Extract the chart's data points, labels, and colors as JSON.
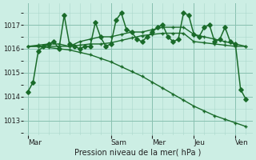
{
  "bg_color": "#cceee4",
  "grid_color": "#aad8cc",
  "line_color": "#1a6b2a",
  "title": "Pression niveau de la mer( hPa )",
  "yticks": [
    1013,
    1014,
    1015,
    1016,
    1017
  ],
  "ylim": [
    1012.4,
    1017.9
  ],
  "day_positions": [
    0,
    96,
    144,
    192,
    240
  ],
  "day_labels": [
    "Mar",
    "Sam",
    "Mer",
    "Jeu",
    "Ven"
  ],
  "xlim": [
    -5,
    260
  ],
  "lines": [
    {
      "x": [
        0,
        6,
        12,
        18,
        24,
        30,
        36,
        42,
        48,
        54,
        60,
        66,
        72,
        78,
        84,
        90,
        96,
        102,
        108,
        114,
        120,
        126,
        132,
        138,
        144,
        150,
        156,
        162,
        168,
        174,
        180,
        186,
        192,
        198,
        204,
        210,
        216,
        222,
        228,
        234,
        240,
        246,
        252
      ],
      "y": [
        1014.2,
        1014.6,
        1015.9,
        1016.1,
        1016.2,
        1016.3,
        1016.0,
        1017.4,
        1016.2,
        1016.1,
        1016.0,
        1016.1,
        1016.1,
        1017.1,
        1016.5,
        1016.1,
        1016.2,
        1017.2,
        1017.5,
        1016.8,
        1016.7,
        1016.4,
        1016.3,
        1016.5,
        1016.7,
        1016.9,
        1017.0,
        1016.5,
        1016.3,
        1016.4,
        1017.5,
        1017.4,
        1016.6,
        1016.5,
        1016.9,
        1017.0,
        1016.3,
        1016.4,
        1016.9,
        1016.3,
        1016.2,
        1014.3,
        1013.9
      ]
    },
    {
      "x": [
        0,
        12,
        24,
        36,
        48,
        60,
        72,
        84,
        96,
        108,
        120,
        132,
        144,
        156,
        168,
        180,
        192,
        204,
        216,
        228,
        240,
        252
      ],
      "y": [
        1016.1,
        1016.15,
        1016.2,
        1016.2,
        1016.1,
        1016.3,
        1016.4,
        1016.5,
        1016.5,
        1016.6,
        1016.7,
        1016.7,
        1016.8,
        1016.9,
        1016.9,
        1016.9,
        1016.6,
        1016.5,
        1016.4,
        1016.3,
        1016.2,
        1016.1
      ]
    },
    {
      "x": [
        0,
        12,
        24,
        36,
        48,
        60,
        72,
        84,
        96,
        108,
        120,
        132,
        144,
        156,
        168,
        180,
        192,
        204,
        216,
        228,
        240,
        252
      ],
      "y": [
        1016.1,
        1016.1,
        1016.1,
        1016.1,
        1016.1,
        1016.15,
        1016.2,
        1016.2,
        1016.25,
        1016.35,
        1016.45,
        1016.55,
        1016.6,
        1016.65,
        1016.65,
        1016.65,
        1016.3,
        1016.25,
        1016.2,
        1016.15,
        1016.1,
        1016.1
      ]
    },
    {
      "x": [
        0,
        12,
        24,
        36,
        48,
        60,
        72,
        84,
        96,
        108,
        120,
        132,
        144,
        156,
        168,
        180,
        192,
        204,
        216,
        228,
        240,
        252
      ],
      "y": [
        1016.1,
        1016.1,
        1016.05,
        1016.0,
        1015.95,
        1015.85,
        1015.75,
        1015.6,
        1015.45,
        1015.25,
        1015.05,
        1014.85,
        1014.6,
        1014.35,
        1014.1,
        1013.85,
        1013.6,
        1013.4,
        1013.2,
        1013.05,
        1012.9,
        1012.75
      ]
    }
  ]
}
